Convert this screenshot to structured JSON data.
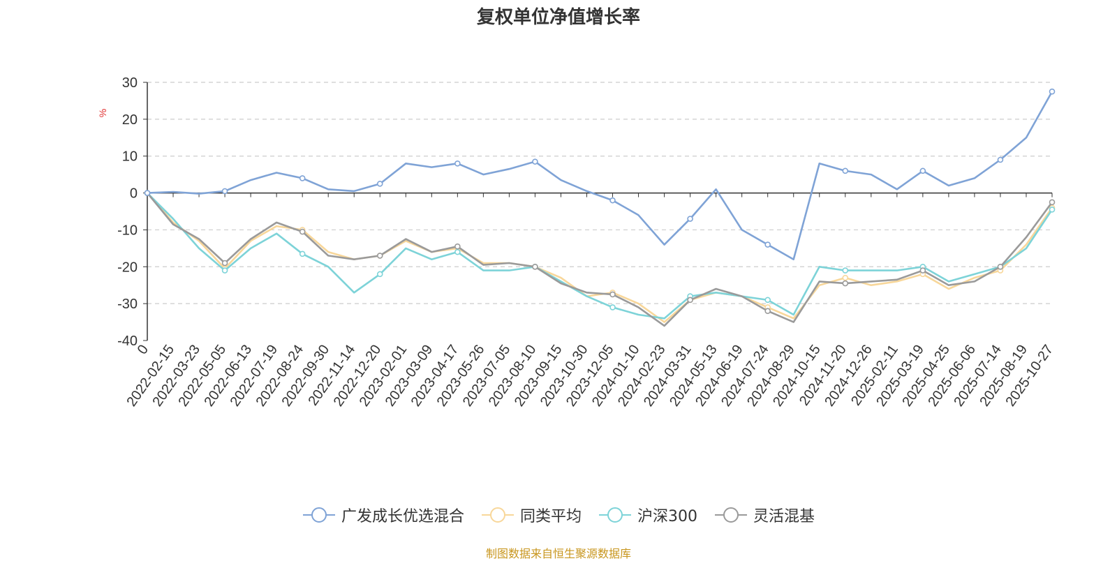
{
  "title": "复权单位净值增长率",
  "source_note": "制图数据来自恒生聚源数据库",
  "chart_data": {
    "type": "line",
    "ylabel": "%",
    "ylim": [
      -40,
      30
    ],
    "yticks": [
      30,
      20,
      10,
      0,
      -10,
      -20,
      -30,
      -40
    ],
    "grid": true,
    "legend_position": "bottom",
    "categories": [
      "0",
      "2022-02-15",
      "2022-03-23",
      "2022-05-05",
      "2022-06-13",
      "2022-07-19",
      "2022-08-24",
      "2022-09-30",
      "2022-11-14",
      "2022-12-20",
      "2023-02-01",
      "2023-03-09",
      "2023-04-17",
      "2023-05-26",
      "2023-07-05",
      "2023-08-10",
      "2023-09-15",
      "2023-10-30",
      "2023-12-05",
      "2024-01-10",
      "2024-02-23",
      "2024-03-31",
      "2024-05-13",
      "2024-06-19",
      "2024-07-24",
      "2024-08-29",
      "2024-10-15",
      "2024-11-20",
      "2024-12-26",
      "2025-02-11",
      "2025-03-19",
      "2025-04-25",
      "2025-06-06",
      "2025-07-14",
      "2025-08-19",
      "2025-10-27"
    ],
    "series": [
      {
        "name": "广发成长优选混合",
        "color": "#7fa3d6",
        "values": [
          0,
          0.3,
          -0.2,
          0.5,
          3.5,
          5.5,
          4.0,
          1.0,
          0.5,
          2.5,
          8.0,
          7.0,
          8.0,
          5.0,
          6.5,
          8.5,
          3.5,
          0.5,
          -2.0,
          -6.0,
          -14.0,
          -7.0,
          1.0,
          -10.0,
          -14.0,
          -18.0,
          8.0,
          6.0,
          5.0,
          1.0,
          6.0,
          2.0,
          4.0,
          9.0,
          15.0,
          27.5
        ]
      },
      {
        "name": "同类平均",
        "color": "#f8d79a",
        "values": [
          0,
          -8.0,
          -13.0,
          -20.5,
          -13.0,
          -9.0,
          -10.0,
          -16.0,
          -18.0,
          -17.0,
          -13.0,
          -16.0,
          -15.0,
          -19.0,
          -19.0,
          -20.0,
          -23.0,
          -28.0,
          -27.0,
          -30.0,
          -35.0,
          -29.0,
          -27.0,
          -28.0,
          -31.0,
          -34.0,
          -25.0,
          -23.0,
          -25.0,
          -24.0,
          -22.0,
          -26.0,
          -23.0,
          -21.0,
          -14.0,
          -4.0
        ]
      },
      {
        "name": "沪深300",
        "color": "#7dd3d8",
        "values": [
          0,
          -7.0,
          -15.0,
          -21.0,
          -15.0,
          -11.0,
          -16.5,
          -20.0,
          -27.0,
          -22.0,
          -15.0,
          -18.0,
          -16.0,
          -21.0,
          -21.0,
          -20.0,
          -24.0,
          -28.0,
          -31.0,
          -33.0,
          -34.0,
          -28.0,
          -27.0,
          -28.0,
          -29.0,
          -33.0,
          -20.0,
          -21.0,
          -21.0,
          -21.0,
          -20.0,
          -24.0,
          -22.0,
          -20.0,
          -15.0,
          -4.5
        ]
      },
      {
        "name": "灵活混基",
        "color": "#9a9a9a",
        "values": [
          0,
          -8.5,
          -12.5,
          -19.0,
          -12.5,
          -8.0,
          -10.5,
          -17.0,
          -18.0,
          -17.0,
          -12.5,
          -16.0,
          -14.5,
          -19.5,
          -19.0,
          -20.0,
          -24.5,
          -27.0,
          -27.5,
          -31.0,
          -36.0,
          -29.0,
          -26.0,
          -28.0,
          -32.0,
          -35.0,
          -24.0,
          -24.5,
          -24.0,
          -23.5,
          -21.0,
          -25.0,
          -24.0,
          -20.0,
          -12.0,
          -2.5
        ]
      }
    ]
  }
}
